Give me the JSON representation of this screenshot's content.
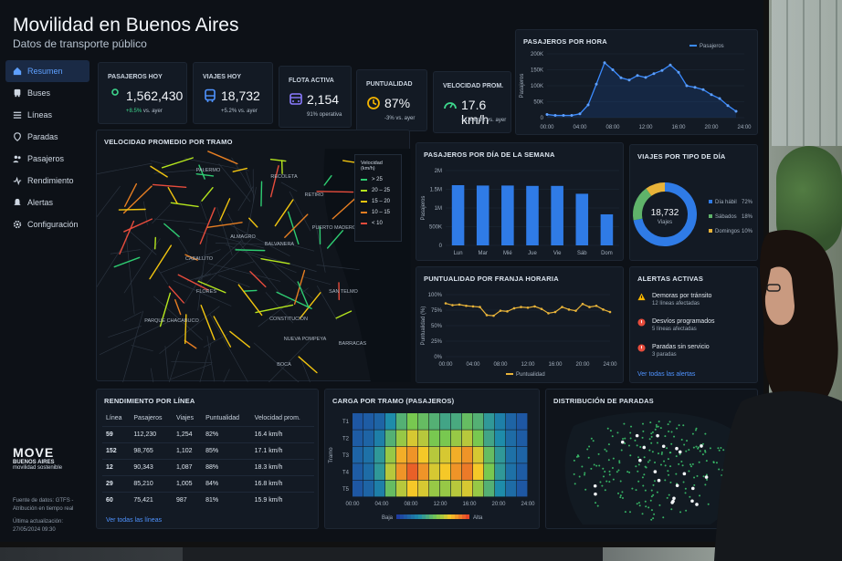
{
  "header": {
    "title": "Movilidad en Buenos Aires",
    "subtitle": "Datos de transporte público"
  },
  "sidebar": {
    "items": [
      {
        "label": "Resumen",
        "icon": "home-icon",
        "active": true
      },
      {
        "label": "Buses",
        "icon": "bus-icon"
      },
      {
        "label": "Líneas",
        "icon": "list-icon"
      },
      {
        "label": "Paradas",
        "icon": "map-pin-icon"
      },
      {
        "label": "Pasajeros",
        "icon": "users-icon"
      },
      {
        "label": "Rendimiento",
        "icon": "activity-icon"
      },
      {
        "label": "Alertas",
        "icon": "bell-icon"
      },
      {
        "label": "Configuración",
        "icon": "gear-icon"
      }
    ]
  },
  "brand": {
    "name": "MOVE",
    "line": "BUENOS AIRES",
    "tagline": "movilidad sostenible"
  },
  "footer": {
    "source": "Fuente de datos: GTFS - Atribución en tiempo real",
    "updated": "Última actualización: 27/05/2024 09:30"
  },
  "kpis": [
    {
      "label": "PASAJEROS HOY",
      "value": "1,562,430",
      "delta": "+8.5%",
      "delta_suffix": " vs. ayer",
      "icon": "person-icon",
      "color": "#3dd68c"
    },
    {
      "label": "VIAJES HOY",
      "value": "18,732",
      "delta": "+5.2% vs. ayer",
      "icon": "bus-icon",
      "color": "#4f93ff"
    },
    {
      "label": "FLOTA ACTIVA",
      "value": "2,154",
      "delta": "91% operativa",
      "icon": "bus-front-icon",
      "color": "#8b7bff"
    },
    {
      "label": "PUNTUALIDAD",
      "value": "87%",
      "delta": "-3% vs. ayer",
      "icon": "clock-icon",
      "color": "#f4b400"
    },
    {
      "label": "VELOCIDAD PROM.",
      "value": "17.6 km/h",
      "delta": "+1.4 km/h vs. ayer",
      "icon": "gauge-icon",
      "color": "#3dd68c"
    }
  ],
  "map": {
    "title": "VELOCIDAD PROMEDIO POR TRAMO",
    "legend_title": "Velocidad (km/h)",
    "legend": [
      {
        "label": "> 25",
        "color": "#2ecc71"
      },
      {
        "label": "20 – 25",
        "color": "#b5e61d"
      },
      {
        "label": "15 – 20",
        "color": "#f1c40f"
      },
      {
        "label": "10 – 15",
        "color": "#e67e22"
      },
      {
        "label": "< 10",
        "color": "#e74c3c"
      }
    ],
    "places": [
      "PALERMO",
      "RECOLETA",
      "RETIRO",
      "PUERTO MADERO",
      "ALMAGRO",
      "CABALLITO",
      "FLORES",
      "PARQUE CHACABUCO",
      "BOCA",
      "NUEVA POMPEYA",
      "BARRACAS",
      "CONSTITUCIÓN",
      "SAN TELMO",
      "BALVANERA"
    ]
  },
  "charts": {
    "hourly": {
      "title": "PASAJEROS POR HORA",
      "legend": "Pasajeros",
      "ylabel": "Pasajeros"
    },
    "weekly": {
      "title": "PASAJEROS POR DÍA DE LA SEMANA",
      "ylabel": "Pasajeros"
    },
    "daytype": {
      "title": "VIAJES POR TIPO DE DÍA",
      "center_value": "18,732",
      "center_label": "Viajes"
    },
    "punctuality": {
      "title": "PUNTUALIDAD POR FRANJA HORARIA",
      "ylabel": "Puntualidad (%)",
      "legend": "Puntualidad"
    },
    "heatmap": {
      "title": "CARGA POR TRAMO (PASAJEROS)",
      "ylabel": "Tramo",
      "low": "Baja",
      "high": "Alta"
    }
  },
  "chart_data": [
    {
      "type": "line",
      "x": [
        "00:00",
        "01:00",
        "02:00",
        "03:00",
        "04:00",
        "05:00",
        "06:00",
        "07:00",
        "08:00",
        "09:00",
        "10:00",
        "11:00",
        "12:00",
        "13:00",
        "14:00",
        "15:00",
        "16:00",
        "17:00",
        "18:00",
        "19:00",
        "20:00",
        "21:00",
        "22:00",
        "23:00"
      ],
      "series": [
        {
          "name": "Pasajeros",
          "values": [
            10000,
            7000,
            7000,
            7000,
            12000,
            40000,
            105000,
            172000,
            150000,
            125000,
            118000,
            132000,
            126000,
            138000,
            148000,
            165000,
            142000,
            100000,
            95000,
            88000,
            72000,
            60000,
            38000,
            20000
          ]
        }
      ],
      "ylim": [
        0,
        200000
      ],
      "yticks": [
        "0",
        "50K",
        "100K",
        "150K",
        "200K"
      ],
      "xticks": [
        "00:00",
        "04:00",
        "08:00",
        "12:00",
        "16:00",
        "20:00",
        "24:00"
      ]
    },
    {
      "type": "bar",
      "categories": [
        "Lun",
        "Mar",
        "Mié",
        "Jue",
        "Vie",
        "Sáb",
        "Dom"
      ],
      "values": [
        1610000,
        1600000,
        1600000,
        1590000,
        1590000,
        1380000,
        830000
      ],
      "ylim": [
        0,
        2000000
      ],
      "yticks": [
        "0",
        "500K",
        "1M",
        "1.5M",
        "2M"
      ]
    },
    {
      "type": "pie",
      "categories": [
        "Día hábil",
        "Sábados",
        "Domingos"
      ],
      "values": [
        72,
        18,
        10
      ],
      "labels": [
        "72%",
        "18%",
        "10%"
      ],
      "colors": [
        "#2f7be6",
        "#5fb36a",
        "#e8b339"
      ]
    },
    {
      "type": "line",
      "x": [
        "00:00",
        "01:00",
        "02:00",
        "03:00",
        "04:00",
        "05:00",
        "06:00",
        "07:00",
        "08:00",
        "09:00",
        "10:00",
        "11:00",
        "12:00",
        "13:00",
        "14:00",
        "15:00",
        "16:00",
        "17:00",
        "18:00",
        "19:00",
        "20:00",
        "21:00",
        "22:00",
        "23:00",
        "24:00"
      ],
      "series": [
        {
          "name": "Puntualidad",
          "values": [
            86,
            83,
            84,
            82,
            81,
            80,
            67,
            66,
            74,
            73,
            78,
            80,
            79,
            81,
            77,
            70,
            72,
            80,
            76,
            74,
            85,
            80,
            82,
            76,
            72
          ]
        }
      ],
      "ylim": [
        0,
        100
      ],
      "yticks": [
        "0%",
        "25%",
        "50%",
        "75%",
        "100%"
      ],
      "xticks": [
        "00:00",
        "04:00",
        "08:00",
        "12:00",
        "16:00",
        "20:00",
        "24:00"
      ]
    },
    {
      "type": "heatmap",
      "rows": [
        "T1",
        "T2",
        "T3",
        "T4",
        "T5"
      ],
      "xticks": [
        "00:00",
        "04:00",
        "08:00",
        "12:00",
        "16:00",
        "20:00",
        "24:00"
      ],
      "values": [
        [
          0.1,
          0.12,
          0.15,
          0.3,
          0.45,
          0.55,
          0.5,
          0.45,
          0.4,
          0.42,
          0.5,
          0.45,
          0.35,
          0.25,
          0.15,
          0.1
        ],
        [
          0.12,
          0.15,
          0.25,
          0.45,
          0.6,
          0.7,
          0.65,
          0.55,
          0.55,
          0.6,
          0.65,
          0.55,
          0.4,
          0.3,
          0.18,
          0.12
        ],
        [
          0.15,
          0.2,
          0.35,
          0.6,
          0.8,
          0.85,
          0.75,
          0.65,
          0.7,
          0.8,
          0.85,
          0.7,
          0.5,
          0.35,
          0.2,
          0.15
        ],
        [
          0.12,
          0.18,
          0.35,
          0.65,
          0.85,
          0.95,
          0.85,
          0.7,
          0.75,
          0.85,
          0.9,
          0.75,
          0.55,
          0.35,
          0.2,
          0.12
        ],
        [
          0.1,
          0.15,
          0.25,
          0.5,
          0.65,
          0.75,
          0.7,
          0.6,
          0.6,
          0.65,
          0.7,
          0.6,
          0.45,
          0.3,
          0.18,
          0.1
        ]
      ]
    }
  ],
  "performance": {
    "title": "RENDIMIENTO POR LÍNEA",
    "columns": [
      "Línea",
      "Pasajeros",
      "Viajes",
      "Puntualidad",
      "Velocidad prom."
    ],
    "rows": [
      [
        "59",
        "112,230",
        "1,254",
        "82%",
        "16.4 km/h"
      ],
      [
        "152",
        "98,765",
        "1,102",
        "85%",
        "17.1 km/h"
      ],
      [
        "12",
        "90,343",
        "1,087",
        "88%",
        "18.3 km/h"
      ],
      [
        "29",
        "85,210",
        "1,005",
        "84%",
        "16.8 km/h"
      ],
      [
        "60",
        "75,421",
        "987",
        "81%",
        "15.9 km/h"
      ]
    ],
    "link": "Ver todas las líneas"
  },
  "alerts": {
    "title": "ALERTAS ACTIVAS",
    "items": [
      {
        "title": "Demoras por tránsito",
        "detail": "12 líneas afectadas",
        "icon": "warning-icon",
        "color": "#f4b400"
      },
      {
        "title": "Desvíos programados",
        "detail": "5 líneas afectadas",
        "icon": "alert-circle-icon",
        "color": "#e74c3c"
      },
      {
        "title": "Paradas sin servicio",
        "detail": "3 paradas",
        "icon": "alert-circle-icon",
        "color": "#e74c3c"
      }
    ],
    "link": "Ver todas las alertas"
  },
  "stops": {
    "title": "DISTRIBUCIÓN DE PARADAS"
  }
}
